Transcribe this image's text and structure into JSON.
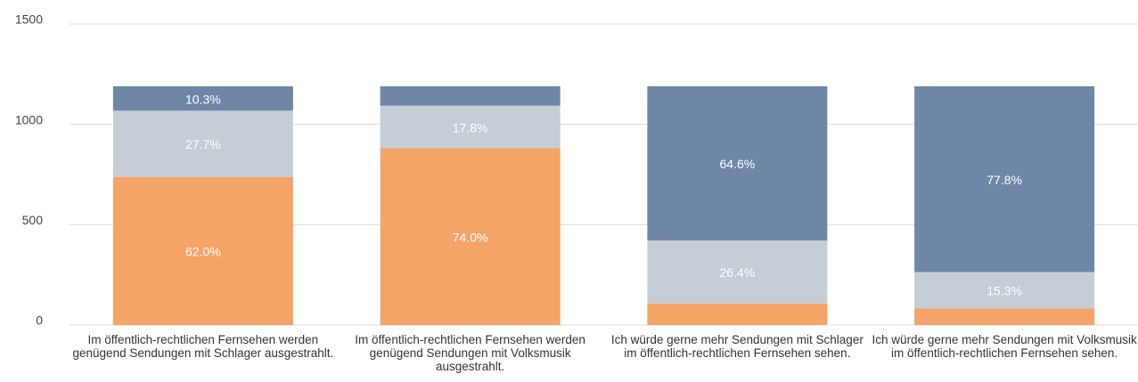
{
  "chart_data": {
    "type": "stacked_bar",
    "categories": [
      "Im öffentlich-rechtlichen Fernsehen werden genügend Sendungen mit Schlager ausgestrahlt.",
      "Im öffentlich-rechtlichen Fernsehen werden genügend Sendungen mit Volksmusik ausgestrahlt.",
      "Ich würde gerne mehr Sendungen mit Schlager im öffentlich-rechtlichen Fernsehen sehen.",
      "Ich würde gerne mehr Sendungen mit Volksmusik im öffentlich-rechtlichen Fernsehen sehen."
    ],
    "series": [
      {
        "color": "#f4a466",
        "values": [
          738,
          881,
          107,
          82
        ],
        "value_labels": [
          "62.0%",
          "74.0%",
          null,
          null
        ]
      },
      {
        "color": "#c5ced7",
        "values": [
          330,
          212,
          314,
          182
        ],
        "value_labels": [
          "27.7%",
          "17.8%",
          "26.4%",
          "15.3%"
        ]
      },
      {
        "color": "#6f87a7",
        "values": [
          122,
          97,
          769,
          926
        ],
        "value_labels": [
          "10.3%",
          null,
          "64.6%",
          "77.8%"
        ]
      }
    ],
    "ylim": [
      0,
      1500
    ],
    "yticks": [
      0,
      500,
      1000,
      1500
    ],
    "grid": true
  }
}
